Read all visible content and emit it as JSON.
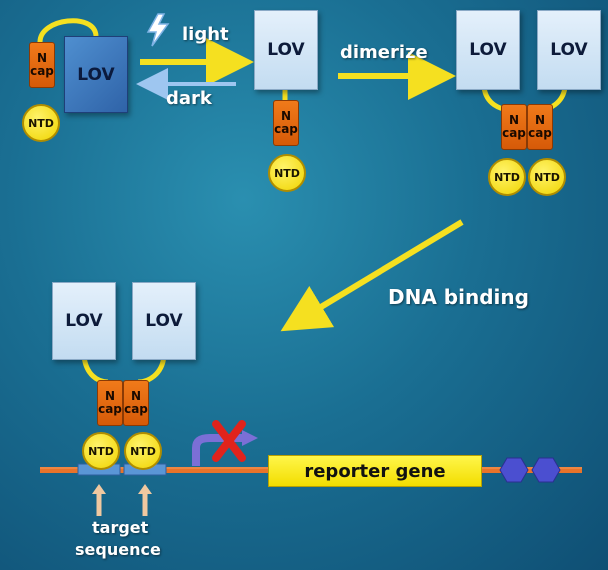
{
  "labels": {
    "lov": "LOV",
    "ncap_n": "N",
    "ncap_cap": "cap",
    "ntd": "NTD",
    "light": "light",
    "dark": "dark",
    "dimerize": "dimerize",
    "dna_binding": "DNA binding",
    "reporter_gene": "reporter gene",
    "target": "target",
    "sequence": "sequence"
  },
  "colors": {
    "lov_light": "#d6e8f7",
    "lov_dark": "#3f78bf",
    "ncap": "#e86a10",
    "ntd": "#f5e020",
    "linker": "#f5e020",
    "dna": "#e8732a",
    "arrow": "#f5e020",
    "block_x": "#e0231c",
    "promoter": "#7b6fd6",
    "hexagon": "#4b4fd0"
  }
}
